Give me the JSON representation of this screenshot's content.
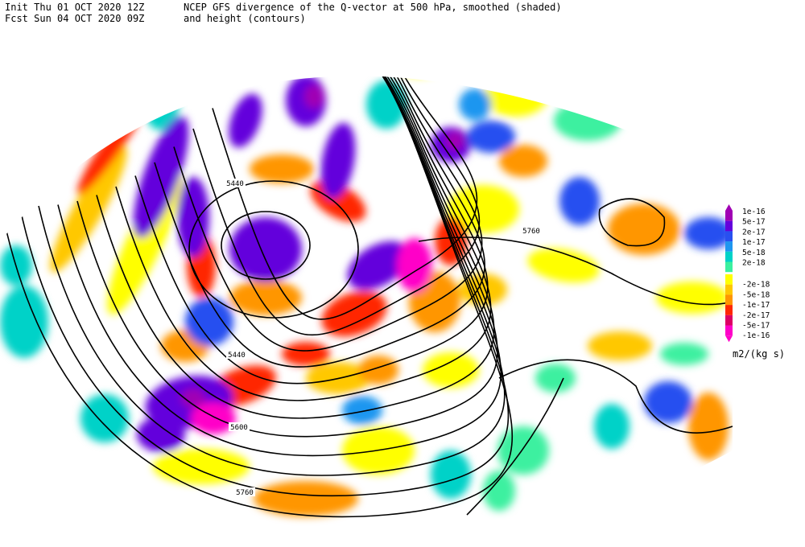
{
  "header": {
    "init": "Init  Thu 01 OCT 2020 12Z",
    "fcst": "Fcst Sun 04 OCT 2020 09Z",
    "title_line1": "NCEP GFS divergence of the Q-vector at 500 hPa, smoothed (shaded)",
    "title_line2": "and height (contours)"
  },
  "contour_labels": [
    5440,
    5760,
    5440,
    5600,
    5760
  ],
  "legend": {
    "positive": [
      {
        "label": "1e-16",
        "color": "#a000b4"
      },
      {
        "label": "5e-17",
        "color": "#6400dc"
      },
      {
        "label": "2e-17",
        "color": "#2850f0"
      },
      {
        "label": "1e-17",
        "color": "#1e96f0"
      },
      {
        "label": "5e-18",
        "color": "#00d2c8"
      },
      {
        "label": "2e-18",
        "color": "#3cf0a0"
      }
    ],
    "negative": [
      {
        "label": "-2e-18",
        "color": "#ffff00"
      },
      {
        "label": "-5e-18",
        "color": "#ffc800"
      },
      {
        "label": "-1e-17",
        "color": "#ff9600"
      },
      {
        "label": "-2e-17",
        "color": "#ff2800"
      },
      {
        "label": "-5e-17",
        "color": "#dc0064"
      },
      {
        "label": "-1e-16",
        "color": "#ff00c8"
      }
    ],
    "unit": "m2/(kg s)"
  }
}
